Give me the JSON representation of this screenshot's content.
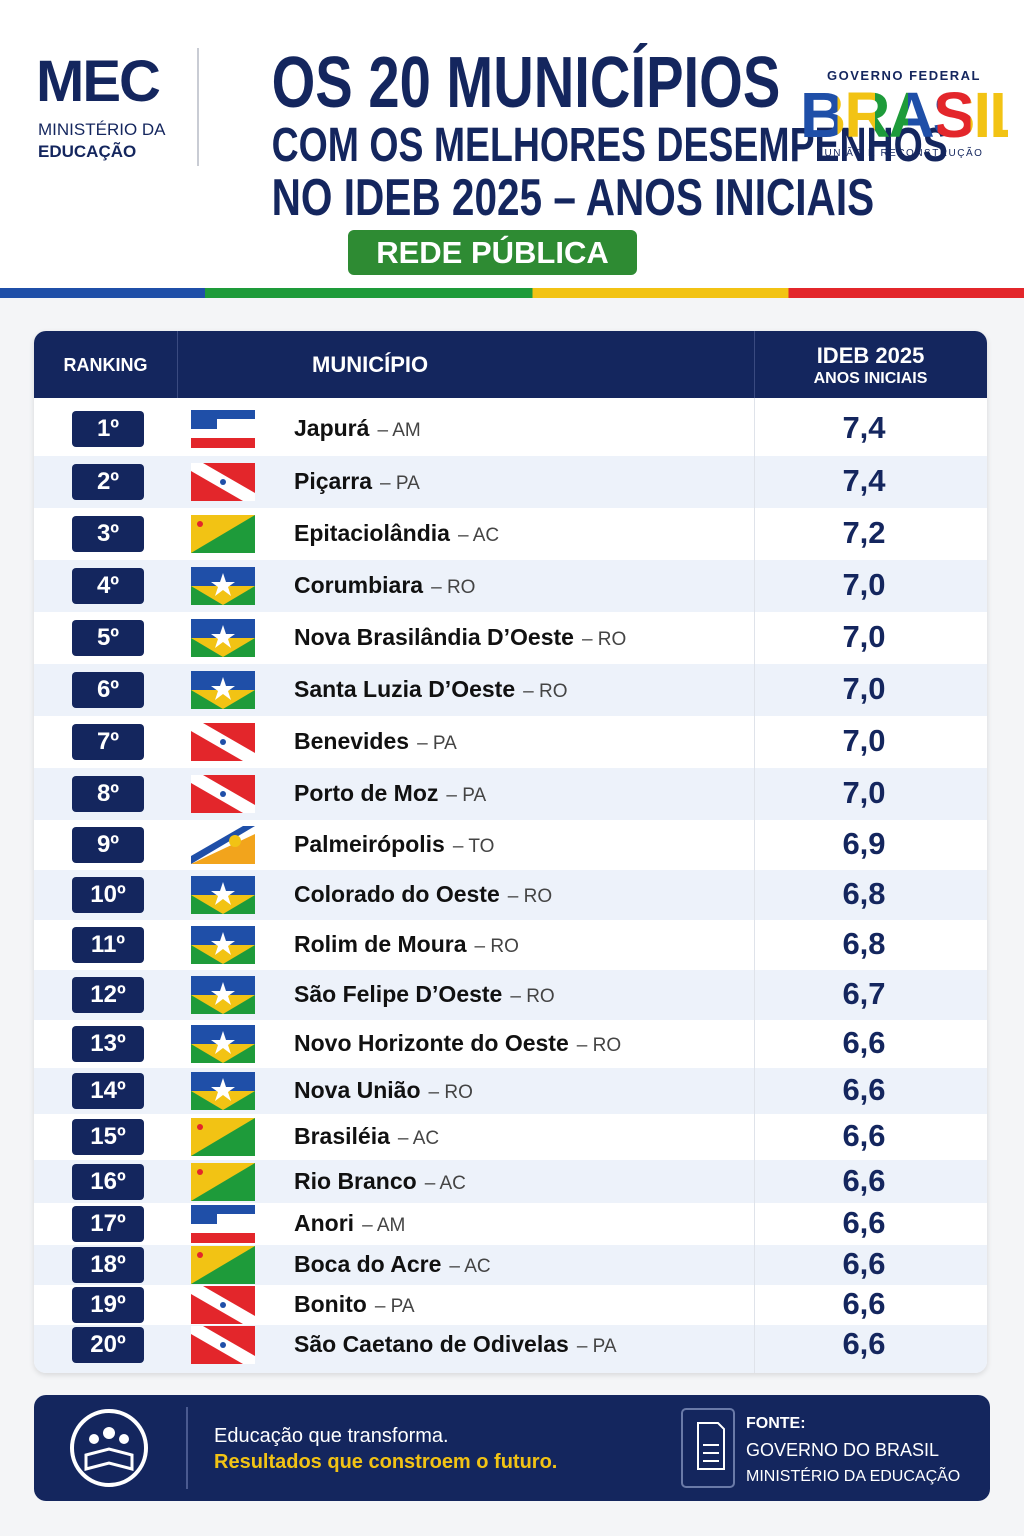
{
  "header": {
    "mec": {
      "logo": "MEC",
      "line1": "MINISTÉRIO DA",
      "line2": "EDUCAÇÃO"
    },
    "title": [
      "OS 20 MUNICÍPIOS",
      "COM OS MELHORES DESEMPENHOS",
      "NO IDEB 2025 – ANOS INICIAIS"
    ],
    "badge": "REDE PÚBLICA",
    "gov": {
      "top": "GOVERNO FEDERAL",
      "logo": "BRASIL",
      "bottom": "UNIÃO E RECONSTRUÇÃO"
    }
  },
  "table": {
    "headers": {
      "ranking": "RANKING",
      "municipality": "MUNICÍPIO",
      "ideb": "IDEB 2025",
      "ideb_sub": "ANOS INICIAIS"
    },
    "rows": [
      {
        "rank": "1º",
        "municipality": "Japurá",
        "state": "– AM",
        "ideb": "7,4"
      },
      {
        "rank": "2º",
        "municipality": "Piçarra",
        "state": "– PA",
        "ideb": "7,4"
      },
      {
        "rank": "3º",
        "municipality": "Epitaciolândia",
        "state": "– AC",
        "ideb": "7,2"
      },
      {
        "rank": "4º",
        "municipality": "Corumbiara",
        "state": "– RO",
        "ideb": "7,0"
      },
      {
        "rank": "5º",
        "municipality": "Nova Brasilândia D’Oeste",
        "state": "– RO",
        "ideb": "7,0"
      },
      {
        "rank": "6º",
        "municipality": "Santa Luzia D’Oeste",
        "state": "– RO",
        "ideb": "7,0"
      },
      {
        "rank": "7º",
        "municipality": "Benevides",
        "state": "– PA",
        "ideb": "7,0"
      },
      {
        "rank": "8º",
        "municipality": "Porto de Moz",
        "state": "– PA",
        "ideb": "7,0"
      },
      {
        "rank": "9º",
        "municipality": "Palmeirópolis",
        "state": "– TO",
        "ideb": "6,9"
      },
      {
        "rank": "10º",
        "municipality": "Colorado do Oeste",
        "state": "– RO",
        "ideb": "6,8"
      },
      {
        "rank": "11º",
        "municipality": "Rolim de Moura",
        "state": "– RO",
        "ideb": "6,8"
      },
      {
        "rank": "12º",
        "municipality": "São Felipe D’Oeste",
        "state": "– RO",
        "ideb": "6,7"
      },
      {
        "rank": "13º",
        "municipality": "Novo Horizonte do Oeste",
        "state": "– RO",
        "ideb": "6,6"
      },
      {
        "rank": "14º",
        "municipality": "Nova União",
        "state": "– RO",
        "ideb": "6,6"
      },
      {
        "rank": "15º",
        "municipality": "Brasiléia",
        "state": "– AC",
        "ideb": "6,6"
      },
      {
        "rank": "16º",
        "municipality": "Rio Branco",
        "state": "– AC",
        "ideb": "6,6"
      },
      {
        "rank": "17º",
        "municipality": "Anori",
        "state": "– AM",
        "ideb": "6,6"
      },
      {
        "rank": "18º",
        "municipality": "Boca do Acre",
        "state": "– AC",
        "ideb": "6,6"
      },
      {
        "rank": "19º",
        "municipality": "Bonito",
        "state": "– PA",
        "ideb": "6,6"
      },
      {
        "rank": "20º",
        "municipality": "São Caetano de Odivelas",
        "state": "– PA",
        "ideb": "6,6"
      }
    ]
  },
  "footer": {
    "slogan1": "Educação que transforma.",
    "slogan2": "Resultados que constroem o futuro.",
    "source_label": "FONTE:",
    "source1": "GOVERNO DO BRASIL",
    "source2": "MINISTÉRIO DA EDUCAÇÃO"
  }
}
